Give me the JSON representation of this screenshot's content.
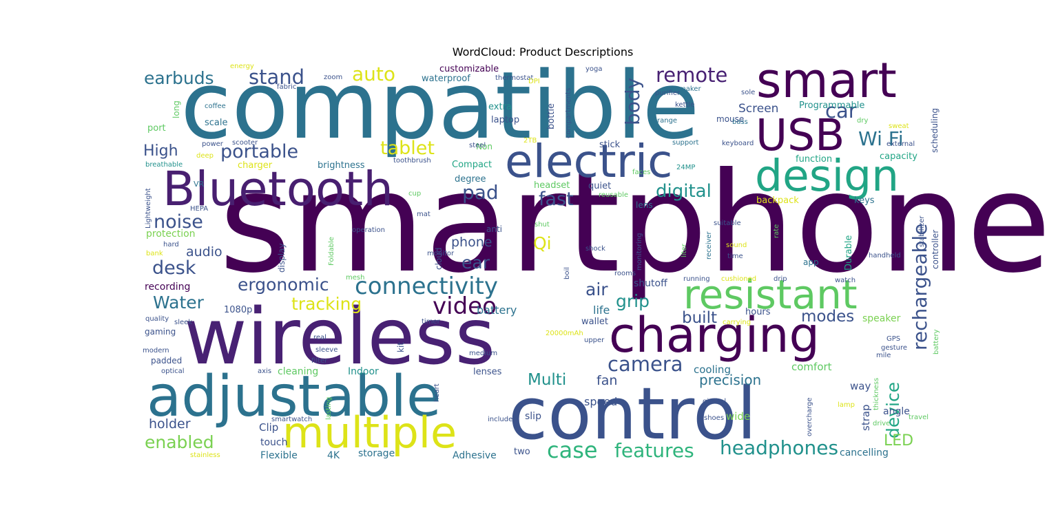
{
  "chart_data": {
    "type": "wordcloud",
    "title": "WordCloud: Product Descriptions",
    "words": [
      {
        "text": "smartphone",
        "weight": 200,
        "color": "#440154"
      },
      {
        "text": "compatible",
        "weight": 135,
        "color": "#2c728e"
      },
      {
        "text": "wireless",
        "weight": 112,
        "color": "#482173"
      },
      {
        "text": "control",
        "weight": 104,
        "color": "#3b528b"
      },
      {
        "text": "adjustable",
        "weight": 82,
        "color": "#2c728e"
      },
      {
        "text": "smart",
        "weight": 70,
        "color": "#440154"
      },
      {
        "text": "charging",
        "weight": 70,
        "color": "#440154"
      },
      {
        "text": "Bluetooth",
        "weight": 69,
        "color": "#481f70"
      },
      {
        "text": "electric",
        "weight": 66,
        "color": "#3b528b"
      },
      {
        "text": "USB",
        "weight": 63,
        "color": "#440154"
      },
      {
        "text": "design",
        "weight": 63,
        "color": "#21a585"
      },
      {
        "text": "multiple",
        "weight": 62,
        "color": "#dde318"
      },
      {
        "text": "resistant",
        "weight": 58,
        "color": "#5ec962"
      },
      {
        "text": "connectivity",
        "weight": 34,
        "color": "#2c728e"
      },
      {
        "text": "features",
        "weight": 28,
        "color": "#2fb47c"
      },
      {
        "text": "headphones",
        "weight": 28,
        "color": "#21918c"
      },
      {
        "text": "rechargeable",
        "weight": 28,
        "color": "#3b528b"
      },
      {
        "text": "video",
        "weight": 34,
        "color": "#440154"
      },
      {
        "text": "case",
        "weight": 32,
        "color": "#2fb47c"
      },
      {
        "text": "camera",
        "weight": 29,
        "color": "#3b528b"
      },
      {
        "text": "remote",
        "weight": 29,
        "color": "#482173"
      },
      {
        "text": "stand",
        "weight": 29,
        "color": "#3b528b"
      },
      {
        "text": "earbuds",
        "weight": 25,
        "color": "#2c728e"
      },
      {
        "text": "portable",
        "weight": 27,
        "color": "#3b528b"
      },
      {
        "text": "tablet",
        "weight": 27,
        "color": "#dde318"
      },
      {
        "text": "auto",
        "weight": 28,
        "color": "#dde318"
      },
      {
        "text": "Wi Fi",
        "weight": 28,
        "color": "#2c728e"
      },
      {
        "text": "car",
        "weight": 29,
        "color": "#3b528b"
      },
      {
        "text": "body",
        "weight": 28,
        "color": "#3b528b"
      },
      {
        "text": "digital",
        "weight": 26,
        "color": "#21918c"
      },
      {
        "text": "pad",
        "weight": 28,
        "color": "#3b528b"
      },
      {
        "text": "fast",
        "weight": 27,
        "color": "#3b528b"
      },
      {
        "text": "noise",
        "weight": 27,
        "color": "#3b528b"
      },
      {
        "text": "desk",
        "weight": 27,
        "color": "#3b528b"
      },
      {
        "text": "ergonomic",
        "weight": 25,
        "color": "#3b528b"
      },
      {
        "text": "Water",
        "weight": 25,
        "color": "#2c728e"
      },
      {
        "text": "tracking",
        "weight": 25,
        "color": "#dde318"
      },
      {
        "text": "ear",
        "weight": 25,
        "color": "#3b528b"
      },
      {
        "text": "Qi",
        "weight": 25,
        "color": "#dde318"
      },
      {
        "text": "air",
        "weight": 25,
        "color": "#3b528b"
      },
      {
        "text": "grip",
        "weight": 25,
        "color": "#21918c"
      },
      {
        "text": "built",
        "weight": 23,
        "color": "#3b528b"
      },
      {
        "text": "modes",
        "weight": 23,
        "color": "#3b528b"
      },
      {
        "text": "device",
        "weight": 25,
        "color": "#21a585"
      },
      {
        "text": "Multi",
        "weight": 23,
        "color": "#21918c"
      },
      {
        "text": "enabled",
        "weight": 25,
        "color": "#7ad151"
      },
      {
        "text": "High",
        "weight": 22,
        "color": "#3b528b"
      },
      {
        "text": "LED",
        "weight": 22,
        "color": "#7ad151"
      },
      {
        "text": "precision",
        "weight": 20,
        "color": "#2c728e"
      },
      {
        "text": "audio",
        "weight": 19,
        "color": "#3b528b"
      },
      {
        "text": "phone",
        "weight": 19,
        "color": "#3b528b"
      },
      {
        "text": "holder",
        "weight": 19,
        "color": "#3b528b"
      },
      {
        "text": "fan",
        "weight": 19,
        "color": "#3b528b"
      },
      {
        "text": "Screen",
        "weight": 17,
        "color": "#3b528b"
      },
      {
        "text": "battery",
        "weight": 16,
        "color": "#2c728e"
      },
      {
        "text": "life",
        "weight": 16,
        "color": "#2c728e"
      },
      {
        "text": "speed",
        "weight": 16,
        "color": "#3b528b"
      },
      {
        "text": "cooling",
        "weight": 15,
        "color": "#2c728e"
      },
      {
        "text": "comfort",
        "weight": 15,
        "color": "#5ec962"
      },
      {
        "text": "way",
        "weight": 15,
        "color": "#3b528b"
      },
      {
        "text": "strap",
        "weight": 15,
        "color": "#3b528b"
      },
      {
        "text": "wide",
        "weight": 15,
        "color": "#7ad151"
      },
      {
        "text": "angle",
        "weight": 14,
        "color": "#3b528b"
      },
      {
        "text": "Clip",
        "weight": 15,
        "color": "#3b528b"
      },
      {
        "text": "touch",
        "weight": 14,
        "color": "#3b528b"
      },
      {
        "text": "slip",
        "weight": 14,
        "color": "#3b528b"
      },
      {
        "text": "storage",
        "weight": 14,
        "color": "#2c728e"
      },
      {
        "text": "Flexible",
        "weight": 14,
        "color": "#2c728e"
      },
      {
        "text": "4K",
        "weight": 14,
        "color": "#2c728e"
      },
      {
        "text": "Adhesive",
        "weight": 14,
        "color": "#2c728e"
      },
      {
        "text": "two",
        "weight": 13,
        "color": "#3b528b"
      },
      {
        "text": "cancelling",
        "weight": 14,
        "color": "#2c728e"
      },
      {
        "text": "speaker",
        "weight": 14,
        "color": "#7ad151"
      },
      {
        "text": "hours",
        "weight": 13,
        "color": "#3b528b"
      },
      {
        "text": "wallet",
        "weight": 13,
        "color": "#3b528b"
      },
      {
        "text": "shutoff",
        "weight": 14,
        "color": "#3b528b"
      },
      {
        "text": "recording",
        "weight": 14,
        "color": "#440154"
      },
      {
        "text": "1080p",
        "weight": 13,
        "color": "#3b528b"
      },
      {
        "text": "protection",
        "weight": 14,
        "color": "#7ad151"
      },
      {
        "text": "cleaning",
        "weight": 14,
        "color": "#5ec962"
      },
      {
        "text": "Indoor",
        "weight": 14,
        "color": "#21918c"
      },
      {
        "text": "lenses",
        "weight": 13,
        "color": "#3b528b"
      },
      {
        "text": "customizable",
        "weight": 13,
        "color": "#440154"
      },
      {
        "text": "waterproof",
        "weight": 13,
        "color": "#2c728e"
      },
      {
        "text": "extra",
        "weight": 13,
        "color": "#21918c"
      },
      {
        "text": "laptop",
        "weight": 13,
        "color": "#3b528b"
      },
      {
        "text": "bottle",
        "weight": 13,
        "color": "#3b528b"
      },
      {
        "text": "Programmable",
        "weight": 13,
        "color": "#21918c"
      },
      {
        "text": "scale",
        "weight": 13,
        "color": "#2c728e"
      },
      {
        "text": "port",
        "weight": 13,
        "color": "#5ec962"
      },
      {
        "text": "charger",
        "weight": 13,
        "color": "#dde318"
      },
      {
        "text": "brightness",
        "weight": 13,
        "color": "#2c728e"
      },
      {
        "text": "Compact",
        "weight": 13,
        "color": "#21a585"
      },
      {
        "text": "degree",
        "weight": 13,
        "color": "#2c728e"
      },
      {
        "text": "headset",
        "weight": 13,
        "color": "#5ec962"
      },
      {
        "text": "quiet",
        "weight": 13,
        "color": "#3b528b"
      },
      {
        "text": "lens",
        "weight": 12,
        "color": "#2c728e"
      },
      {
        "text": "backpack",
        "weight": 13,
        "color": "#dde318"
      },
      {
        "text": "keys",
        "weight": 13,
        "color": "#2c728e"
      },
      {
        "text": "capacity",
        "weight": 13,
        "color": "#21a585"
      },
      {
        "text": "function",
        "weight": 13,
        "color": "#21a585"
      },
      {
        "text": "stick",
        "weight": 13,
        "color": "#3b528b"
      },
      {
        "text": "mouse",
        "weight": 12,
        "color": "#3b528b"
      },
      {
        "text": "Durable",
        "weight": 13,
        "color": "#21a585"
      },
      {
        "text": "display",
        "weight": 12,
        "color": "#3b528b"
      },
      {
        "text": "cloud",
        "weight": 12,
        "color": "#3b528b"
      },
      {
        "text": "anti",
        "weight": 12,
        "color": "#3b528b"
      },
      {
        "text": "app",
        "weight": 12,
        "color": "#2c728e"
      },
      {
        "text": "gaming",
        "weight": 12,
        "color": "#3b528b"
      },
      {
        "text": "padded",
        "weight": 12,
        "color": "#3b528b"
      },
      {
        "text": "kit",
        "weight": 12,
        "color": "#3b528b"
      },
      {
        "text": "scheduling",
        "weight": 12,
        "color": "#3b528b"
      },
      {
        "text": "controller",
        "weight": 12,
        "color": "#3b528b"
      },
      {
        "text": "long",
        "weight": 12,
        "color": "#5ec962"
      },
      {
        "text": "Non",
        "weight": 12,
        "color": "#5ec962"
      },
      {
        "text": "VR",
        "weight": 11,
        "color": "#2c728e"
      },
      {
        "text": "coffee",
        "weight": 10,
        "color": "#2c728e"
      },
      {
        "text": "energy",
        "weight": 10,
        "color": "#dde318"
      },
      {
        "text": "fabric",
        "weight": 10,
        "color": "#3b528b"
      },
      {
        "text": "zoom",
        "weight": 10,
        "color": "#3b528b"
      },
      {
        "text": "thermostat",
        "weight": 10,
        "color": "#3b528b"
      },
      {
        "text": "DPI",
        "weight": 10,
        "color": "#dde318"
      },
      {
        "text": "yoga",
        "weight": 10,
        "color": "#3b528b"
      },
      {
        "text": "purifier",
        "weight": 10,
        "color": "#3b528b"
      },
      {
        "text": "maker",
        "weight": 10,
        "color": "#2c728e"
      },
      {
        "text": "kettle",
        "weight": 10,
        "color": "#3b528b"
      },
      {
        "text": "sole",
        "weight": 10,
        "color": "#3b528b"
      },
      {
        "text": "dry",
        "weight": 10,
        "color": "#5ec962"
      },
      {
        "text": "bass",
        "weight": 10,
        "color": "#2c728e"
      },
      {
        "text": "sweat",
        "weight": 10,
        "color": "#dde318"
      },
      {
        "text": "range",
        "weight": 10,
        "color": "#2c728e"
      },
      {
        "text": "external",
        "weight": 10,
        "color": "#3b528b"
      },
      {
        "text": "support",
        "weight": 10,
        "color": "#2c728e"
      },
      {
        "text": "keyboard",
        "weight": 10,
        "color": "#3b528b"
      },
      {
        "text": "compartments",
        "weight": 10,
        "color": "#3b528b"
      },
      {
        "text": "power",
        "weight": 10,
        "color": "#3b528b"
      },
      {
        "text": "scooter",
        "weight": 10,
        "color": "#3b528b"
      },
      {
        "text": "2TB",
        "weight": 10,
        "color": "#dde318"
      },
      {
        "text": "steel",
        "weight": 10,
        "color": "#3b528b"
      },
      {
        "text": "deep",
        "weight": 10,
        "color": "#dde318"
      },
      {
        "text": "breathable",
        "weight": 10,
        "color": "#21918c"
      },
      {
        "text": "toothbrush",
        "weight": 10,
        "color": "#3b528b"
      },
      {
        "text": "faces",
        "weight": 10,
        "color": "#5ec962"
      },
      {
        "text": "24MP",
        "weight": 10,
        "color": "#21918c"
      },
      {
        "text": "Lightweight",
        "weight": 10,
        "color": "#3b528b"
      },
      {
        "text": "HEPA",
        "weight": 10,
        "color": "#3b528b"
      },
      {
        "text": "cup",
        "weight": 10,
        "color": "#5ec962"
      },
      {
        "text": "reusable",
        "weight": 10,
        "color": "#5ec962"
      },
      {
        "text": "stabilizer",
        "weight": 10,
        "color": "#3b528b"
      },
      {
        "text": "suitable",
        "weight": 10,
        "color": "#3b528b"
      },
      {
        "text": "mat",
        "weight": 10,
        "color": "#3b528b"
      },
      {
        "text": "shut",
        "weight": 10,
        "color": "#5ec962"
      },
      {
        "text": "operation",
        "weight": 10,
        "color": "#3b528b"
      },
      {
        "text": "receiver",
        "weight": 10,
        "color": "#2c728e"
      },
      {
        "text": "rate",
        "weight": 10,
        "color": "#5ec962"
      },
      {
        "text": "Foldable",
        "weight": 10,
        "color": "#5ec962"
      },
      {
        "text": "shock",
        "weight": 10,
        "color": "#3b528b"
      },
      {
        "text": "monitoring",
        "weight": 10,
        "color": "#3b528b"
      },
      {
        "text": "liter",
        "weight": 10,
        "color": "#5ec962"
      },
      {
        "text": "sound",
        "weight": 10,
        "color": "#dde318"
      },
      {
        "text": "time",
        "weight": 10,
        "color": "#3b528b"
      },
      {
        "text": "handheld",
        "weight": 10,
        "color": "#3b528b"
      },
      {
        "text": "hard",
        "weight": 10,
        "color": "#3b528b"
      },
      {
        "text": "bank",
        "weight": 10,
        "color": "#dde318"
      },
      {
        "text": "monitor",
        "weight": 10,
        "color": "#3b528b"
      },
      {
        "text": "mesh",
        "weight": 10,
        "color": "#5ec962"
      },
      {
        "text": "boil",
        "weight": 10,
        "color": "#3b528b"
      },
      {
        "text": "rooms",
        "weight": 10,
        "color": "#3b528b"
      },
      {
        "text": "running",
        "weight": 10,
        "color": "#3b528b"
      },
      {
        "text": "cushioned",
        "weight": 10,
        "color": "#dde318"
      },
      {
        "text": "drip",
        "weight": 10,
        "color": "#3b528b"
      },
      {
        "text": "watch",
        "weight": 10,
        "color": "#3b528b"
      },
      {
        "text": "quality",
        "weight": 10,
        "color": "#3b528b"
      },
      {
        "text": "sleek",
        "weight": 10,
        "color": "#3b528b"
      },
      {
        "text": "timer",
        "weight": 10,
        "color": "#3b528b"
      },
      {
        "text": "carrying",
        "weight": 10,
        "color": "#dde318"
      },
      {
        "text": "battery",
        "weight": 10,
        "color": "#5ec962"
      },
      {
        "text": "20000mAh",
        "weight": 10,
        "color": "#dde318"
      },
      {
        "text": "upper",
        "weight": 10,
        "color": "#3b528b"
      },
      {
        "text": "real",
        "weight": 10,
        "color": "#3b528b"
      },
      {
        "text": "GPS",
        "weight": 10,
        "color": "#3b528b"
      },
      {
        "text": "gesture",
        "weight": 10,
        "color": "#3b528b"
      },
      {
        "text": "mile",
        "weight": 10,
        "color": "#3b528b"
      },
      {
        "text": "modern",
        "weight": 10,
        "color": "#3b528b"
      },
      {
        "text": "sleeve",
        "weight": 10,
        "color": "#3b528b"
      },
      {
        "text": "filter",
        "weight": 10,
        "color": "#3b528b"
      },
      {
        "text": "medium",
        "weight": 10,
        "color": "#3b528b"
      },
      {
        "text": "optical",
        "weight": 10,
        "color": "#3b528b"
      },
      {
        "text": "axis",
        "weight": 10,
        "color": "#3b528b"
      },
      {
        "text": "heart",
        "weight": 10,
        "color": "#3b528b"
      },
      {
        "text": "lasting",
        "weight": 10,
        "color": "#5ec962"
      },
      {
        "text": "gimbal",
        "weight": 10,
        "color": "#3b528b"
      },
      {
        "text": "overcharge",
        "weight": 10,
        "color": "#3b528b"
      },
      {
        "text": "thickness",
        "weight": 10,
        "color": "#5ec962"
      },
      {
        "text": "lamp",
        "weight": 10,
        "color": "#dde318"
      },
      {
        "text": "drive",
        "weight": 10,
        "color": "#5ec962"
      },
      {
        "text": "travel",
        "weight": 10,
        "color": "#5ec962"
      },
      {
        "text": "smartwatch",
        "weight": 10,
        "color": "#3b528b"
      },
      {
        "text": "shoes",
        "weight": 10,
        "color": "#3b528b"
      },
      {
        "text": "included",
        "weight": 10,
        "color": "#3b528b"
      },
      {
        "text": "stainless",
        "weight": 10,
        "color": "#dde318"
      }
    ]
  }
}
